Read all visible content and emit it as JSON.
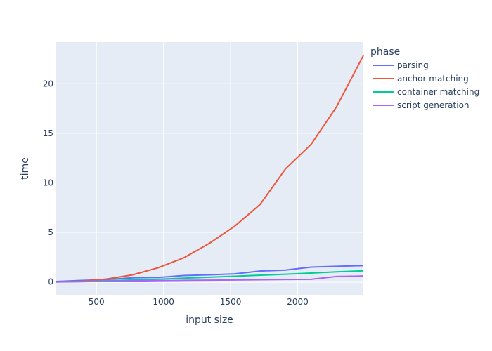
{
  "chart_data": {
    "type": "line",
    "xlabel": "input size",
    "ylabel": "time",
    "xlim": [
      200,
      2490
    ],
    "ylim": [
      -1.3,
      24.2
    ],
    "xticks": [
      500,
      1000,
      1500,
      2000
    ],
    "yticks": [
      0,
      5,
      10,
      15,
      20
    ],
    "grid": true,
    "legend": {
      "title": "phase",
      "placement": "right"
    },
    "x": [
      200,
      390,
      580,
      770,
      960,
      1150,
      1340,
      1530,
      1720,
      1910,
      2100,
      2290,
      2490
    ],
    "series": [
      {
        "name": "parsing",
        "color": "#636efa",
        "values": [
          0.05,
          0.15,
          0.25,
          0.42,
          0.45,
          0.65,
          0.72,
          0.82,
          1.1,
          1.2,
          1.5,
          1.58,
          1.65
        ]
      },
      {
        "name": "anchor matching",
        "color": "#ef553b",
        "values": [
          0.0,
          0.08,
          0.3,
          0.72,
          1.43,
          2.43,
          3.88,
          5.62,
          7.82,
          11.42,
          13.88,
          17.68,
          22.85
        ]
      },
      {
        "name": "container matching",
        "color": "#00cc96",
        "values": [
          0.0,
          0.05,
          0.12,
          0.2,
          0.28,
          0.38,
          0.48,
          0.58,
          0.68,
          0.78,
          0.9,
          1.02,
          1.12
        ]
      },
      {
        "name": "script generation",
        "color": "#ab63fa",
        "values": [
          0.0,
          0.03,
          0.07,
          0.1,
          0.13,
          0.16,
          0.18,
          0.2,
          0.22,
          0.25,
          0.27,
          0.55,
          0.6
        ]
      }
    ]
  }
}
